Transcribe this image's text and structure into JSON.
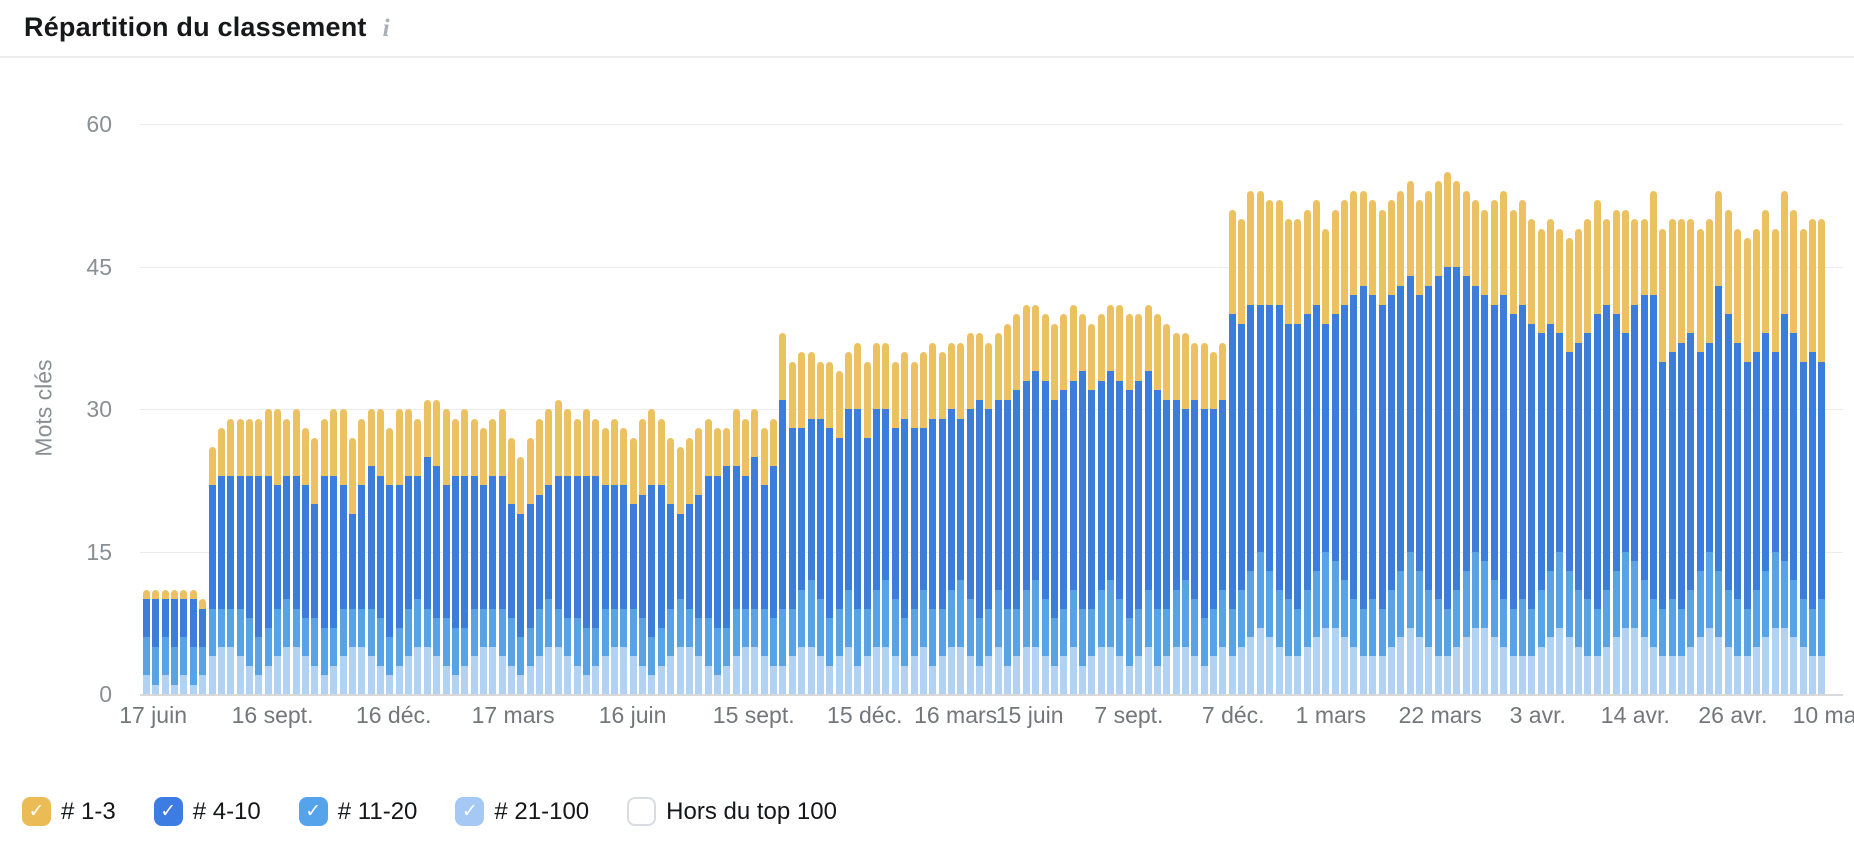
{
  "header": {
    "title": "Répartition du classement",
    "info_icon": "i"
  },
  "y_axis": {
    "label": "Mots clés",
    "ticks": [
      0,
      15,
      30,
      45,
      60
    ],
    "max": 60
  },
  "x_axis": {
    "labels": [
      "17 juin",
      "16 sept.",
      "16 déc.",
      "17 mars",
      "16 juin",
      "15 sept.",
      "15 déc.",
      "16 mars",
      "15 juin",
      "7 sept.",
      "7 déc.",
      "1 mars",
      "22 mars",
      "3 avr.",
      "14 avr.",
      "26 avr.",
      "10 mai"
    ],
    "fractions": [
      0.006,
      0.077,
      0.149,
      0.22,
      0.291,
      0.363,
      0.429,
      0.483,
      0.527,
      0.586,
      0.648,
      0.706,
      0.771,
      0.829,
      0.887,
      0.945,
      1.001
    ]
  },
  "legend": [
    {
      "label": "# 1-3",
      "color": "#EBBC55",
      "checked": true
    },
    {
      "label": "# 4-10",
      "color": "#3D7DE3",
      "checked": true
    },
    {
      "label": "# 11-20",
      "color": "#55A4EB",
      "checked": true
    },
    {
      "label": "# 21-100",
      "color": "#A5C9F4",
      "checked": true
    },
    {
      "label": "Hors du top 100",
      "color": "#FFFFFF",
      "checked": false
    }
  ],
  "chart_data": {
    "type": "bar",
    "stacked": true,
    "title": "Répartition du classement",
    "ylabel": "Mots clés",
    "ylim": [
      0,
      60
    ],
    "grid": true,
    "legend_position": "bottom",
    "x_ticks": [
      "17 juin",
      "16 sept.",
      "16 déc.",
      "17 mars",
      "16 juin",
      "15 sept.",
      "15 déc.",
      "16 mars",
      "15 juin",
      "7 sept.",
      "7 déc.",
      "1 mars",
      "22 mars",
      "3 avr.",
      "14 avr.",
      "26 avr.",
      "10 mai"
    ],
    "series": [
      {
        "name": "# 21-100",
        "color": "#B1D2F2",
        "values": [
          2,
          1,
          2,
          1,
          2,
          1,
          2,
          4,
          5,
          5,
          4,
          3,
          2,
          3,
          4,
          5,
          5,
          4,
          3,
          2,
          3,
          4,
          5,
          5,
          4,
          3,
          2,
          3,
          4,
          5,
          5,
          4,
          3,
          2,
          3,
          4,
          5,
          5,
          4,
          3,
          2,
          3,
          4,
          5,
          5,
          4,
          3,
          2,
          3,
          4,
          5,
          5,
          4,
          3,
          2,
          3,
          4,
          5,
          5,
          4,
          3,
          2,
          3,
          4,
          5,
          5,
          4,
          3,
          3,
          4,
          5,
          5,
          4,
          3,
          4,
          5,
          3,
          4,
          5,
          5,
          4,
          3,
          4,
          5,
          3,
          4,
          5,
          5,
          4,
          3,
          4,
          5,
          3,
          4,
          5,
          5,
          4,
          3,
          4,
          5,
          3,
          4,
          5,
          5,
          4,
          3,
          4,
          5,
          3,
          4,
          5,
          5,
          4,
          3,
          4,
          5,
          4,
          5,
          6,
          7,
          6,
          5,
          4,
          4,
          5,
          6,
          7,
          7,
          6,
          5,
          4,
          4,
          4,
          5,
          6,
          7,
          6,
          5,
          4,
          4,
          5,
          6,
          7,
          7,
          6,
          5,
          4,
          4,
          4,
          5,
          6,
          7,
          6,
          5,
          4,
          4,
          5,
          6,
          7,
          7,
          6,
          5,
          4,
          4,
          4,
          5,
          6,
          7,
          6,
          5,
          4,
          4,
          5,
          6,
          7,
          7,
          6,
          5,
          4,
          4
        ]
      },
      {
        "name": "# 11-20",
        "color": "#57A3E6",
        "values": [
          4,
          4,
          4,
          4,
          4,
          4,
          3,
          5,
          4,
          4,
          5,
          5,
          4,
          4,
          5,
          5,
          4,
          4,
          5,
          5,
          4,
          5,
          4,
          4,
          5,
          5,
          4,
          4,
          5,
          5,
          4,
          4,
          5,
          5,
          4,
          5,
          4,
          4,
          5,
          5,
          4,
          4,
          5,
          5,
          4,
          4,
          5,
          5,
          4,
          5,
          4,
          4,
          5,
          5,
          4,
          4,
          5,
          5,
          4,
          4,
          5,
          5,
          4,
          5,
          4,
          4,
          5,
          5,
          6,
          5,
          6,
          7,
          6,
          5,
          5,
          6,
          6,
          5,
          6,
          7,
          6,
          5,
          5,
          6,
          6,
          5,
          6,
          7,
          6,
          5,
          5,
          6,
          6,
          5,
          6,
          7,
          6,
          5,
          5,
          6,
          6,
          5,
          6,
          7,
          6,
          5,
          5,
          6,
          6,
          5,
          6,
          7,
          6,
          5,
          5,
          6,
          5,
          6,
          7,
          8,
          7,
          6,
          6,
          5,
          6,
          7,
          8,
          7,
          6,
          5,
          5,
          6,
          5,
          6,
          7,
          8,
          7,
          6,
          6,
          5,
          6,
          7,
          8,
          7,
          6,
          5,
          5,
          6,
          5,
          6,
          7,
          8,
          7,
          6,
          6,
          5,
          6,
          7,
          8,
          7,
          6,
          5,
          5,
          6,
          5,
          6,
          7,
          8,
          7,
          6,
          6,
          5,
          6,
          7,
          8,
          7,
          6,
          5,
          5,
          6
        ]
      },
      {
        "name": "# 4-10",
        "color": "#3C7CDB",
        "values": [
          4,
          5,
          4,
          5,
          4,
          5,
          4,
          13,
          14,
          14,
          14,
          15,
          17,
          16,
          13,
          13,
          14,
          14,
          12,
          16,
          16,
          13,
          10,
          13,
          15,
          15,
          16,
          15,
          14,
          13,
          16,
          16,
          14,
          16,
          16,
          14,
          13,
          14,
          14,
          12,
          13,
          13,
          12,
          12,
          14,
          15,
          15,
          16,
          16,
          13,
          13,
          13,
          11,
          13,
          16,
          15,
          11,
          9,
          11,
          13,
          15,
          16,
          17,
          15,
          14,
          16,
          13,
          16,
          22,
          19,
          17,
          17,
          19,
          20,
          18,
          19,
          21,
          18,
          19,
          18,
          18,
          21,
          19,
          17,
          20,
          20,
          19,
          17,
          20,
          23,
          21,
          20,
          22,
          23,
          22,
          22,
          23,
          23,
          23,
          22,
          25,
          23,
          22,
          22,
          23,
          24,
          24,
          23,
          23,
          22,
          20,
          18,
          21,
          22,
          21,
          20,
          31,
          28,
          28,
          26,
          28,
          30,
          29,
          30,
          29,
          28,
          24,
          26,
          29,
          32,
          34,
          32,
          32,
          31,
          30,
          29,
          29,
          32,
          34,
          36,
          34,
          31,
          28,
          28,
          29,
          32,
          31,
          31,
          30,
          27,
          26,
          23,
          23,
          26,
          28,
          31,
          30,
          27,
          23,
          27,
          30,
          32,
          26,
          26,
          28,
          27,
          23,
          22,
          30,
          29,
          27,
          26,
          25,
          25,
          21,
          26,
          26,
          25,
          27,
          25
        ]
      },
      {
        "name": "# 1-3",
        "color": "#ECC161",
        "values": [
          1,
          1,
          1,
          1,
          1,
          1,
          1,
          4,
          5,
          6,
          6,
          6,
          6,
          7,
          8,
          6,
          7,
          6,
          7,
          6,
          7,
          8,
          8,
          7,
          6,
          7,
          6,
          8,
          7,
          6,
          6,
          7,
          8,
          6,
          7,
          6,
          6,
          6,
          7,
          7,
          6,
          7,
          8,
          8,
          8,
          7,
          6,
          7,
          6,
          6,
          7,
          6,
          7,
          8,
          8,
          7,
          7,
          7,
          7,
          7,
          6,
          5,
          4,
          6,
          6,
          5,
          6,
          5,
          7,
          7,
          8,
          7,
          6,
          7,
          7,
          6,
          7,
          8,
          7,
          7,
          7,
          7,
          7,
          8,
          8,
          7,
          7,
          8,
          8,
          7,
          7,
          7,
          8,
          8,
          8,
          7,
          7,
          8,
          8,
          8,
          6,
          7,
          7,
          7,
          8,
          8,
          7,
          7,
          8,
          8,
          7,
          8,
          6,
          7,
          6,
          6,
          11,
          11,
          12,
          12,
          11,
          11,
          11,
          11,
          11,
          11,
          10,
          11,
          11,
          11,
          10,
          10,
          10,
          10,
          10,
          10,
          10,
          10,
          10,
          10,
          9,
          9,
          9,
          9,
          11,
          11,
          11,
          11,
          11,
          11,
          11,
          11,
          12,
          12,
          12,
          12,
          9,
          11,
          13,
          9,
          8,
          11,
          14,
          14,
          13,
          12,
          13,
          13,
          10,
          11,
          12,
          13,
          13,
          13,
          13,
          13,
          13,
          14,
          14,
          15
        ]
      }
    ]
  },
  "colors": {
    "grid": "#ECECEC",
    "baseline": "#D9D9D9",
    "axis_text": "#8A8F94",
    "x_text": "#73767A"
  }
}
